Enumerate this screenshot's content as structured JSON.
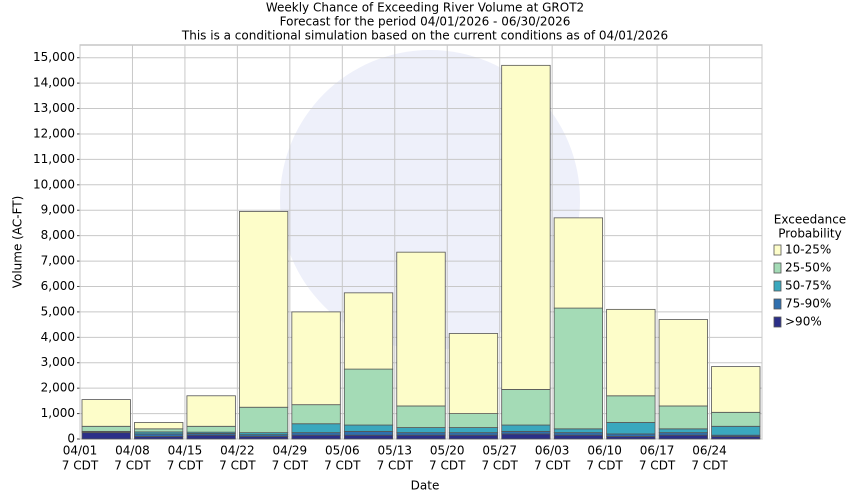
{
  "chart_data": {
    "type": "stacked_bar",
    "title": "Weekly Chance of Exceeding River Volume at GROT2",
    "subtitle": "Forecast for the period 04/01/2026 - 06/30/2026",
    "subtitle2": "This is a conditional simulation based on the current conditions as of 04/01/2026",
    "y_label": "Volume (AC-FT)",
    "x_label": "Date",
    "legend_title": "Exceedance",
    "legend_title2": "Probability",
    "tick_sublabel": "7 CDT",
    "categories": [
      "04/01",
      "04/08",
      "04/15",
      "04/22",
      "04/29",
      "05/06",
      "05/13",
      "05/20",
      "05/27",
      "06/03",
      "06/10",
      "06/17",
      "06/24"
    ],
    "series": [
      {
        "name": ">90%",
        "color": "#2b2f88",
        "values": [
          250,
          100,
          150,
          100,
          150,
          150,
          150,
          150,
          200,
          150,
          100,
          150,
          100
        ]
      },
      {
        "name": "75-90%",
        "color": "#2f6fae",
        "values": [
          30,
          100,
          70,
          70,
          100,
          150,
          100,
          100,
          100,
          100,
          100,
          100,
          50
        ]
      },
      {
        "name": "50-75%",
        "color": "#3aa8be",
        "values": [
          20,
          80,
          50,
          80,
          350,
          250,
          200,
          200,
          250,
          150,
          450,
          150,
          350
        ]
      },
      {
        "name": "25-50%",
        "color": "#a4dbb6",
        "values": [
          200,
          120,
          230,
          1000,
          750,
          2200,
          850,
          550,
          1400,
          4750,
          1050,
          900,
          550
        ]
      },
      {
        "name": "10-25%",
        "color": "#fdfdc9",
        "values": [
          1050,
          250,
          1200,
          7700,
          3650,
          3000,
          6050,
          3150,
          12750,
          3550,
          3400,
          3400,
          1800
        ]
      }
    ],
    "ylim": [
      0,
      15500
    ],
    "yticks": [
      0,
      {
        "value": 1000,
        "label": "1,000"
      },
      {
        "value": 2000,
        "label": "2,000"
      },
      {
        "value": 3000,
        "label": "3,000"
      },
      {
        "value": 4000,
        "label": "4,000"
      },
      {
        "value": 5000,
        "label": "5,000"
      },
      {
        "value": 6000,
        "label": "6,000"
      },
      {
        "value": 7000,
        "label": "7,000"
      },
      {
        "value": 8000,
        "label": "8,000"
      },
      {
        "value": 9000,
        "label": "9,000"
      },
      {
        "value": 10000,
        "label": "10,000"
      },
      {
        "value": 11000,
        "label": "11,000"
      },
      {
        "value": 12000,
        "label": "12,000"
      },
      {
        "value": 13000,
        "label": "13,000"
      },
      {
        "value": 14000,
        "label": "14,000"
      },
      {
        "value": 15000,
        "label": "15,000"
      }
    ],
    "grid": true
  }
}
